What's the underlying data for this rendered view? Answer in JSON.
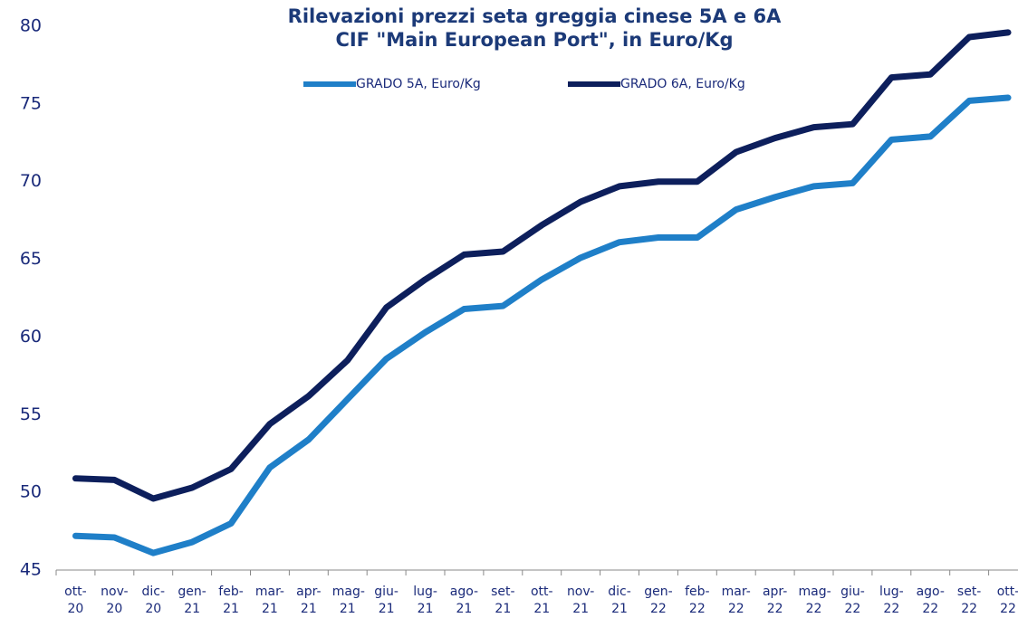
{
  "chart_data": {
    "type": "line",
    "title": "Rilevazioni prezzi seta greggia cinese 5A e 6A",
    "subtitle": "CIF \"Main European Port\", in Euro/Kg",
    "categories": [
      "ott-20",
      "nov-20",
      "dic-20",
      "gen-21",
      "feb-21",
      "mar-21",
      "apr-21",
      "mag-21",
      "giu-21",
      "lug-21",
      "ago-21",
      "set-21",
      "ott-21",
      "nov-21",
      "dic-21",
      "gen-22",
      "feb-22",
      "mar-22",
      "apr-22",
      "mag-22",
      "giu-22",
      "lug-22",
      "ago-22",
      "set-22",
      "ott-22"
    ],
    "series": [
      {
        "name": "GRADO 5A, Euro/Kg",
        "color": "#1f7fc8",
        "values": [
          47.2,
          47.1,
          46.1,
          46.8,
          48.0,
          51.6,
          53.4,
          56.0,
          58.6,
          60.3,
          61.8,
          62.0,
          63.7,
          65.1,
          66.1,
          66.4,
          66.4,
          68.2,
          69.0,
          69.7,
          69.9,
          72.7,
          72.9,
          75.2,
          75.4
        ]
      },
      {
        "name": "GRADO 6A, Euro/Kg",
        "color": "#0d1f5c",
        "values": [
          50.9,
          50.8,
          49.6,
          50.3,
          51.5,
          54.4,
          56.2,
          58.5,
          61.9,
          63.7,
          65.3,
          65.5,
          67.2,
          68.7,
          69.7,
          70.0,
          70.0,
          71.9,
          72.8,
          73.5,
          73.7,
          76.7,
          76.9,
          79.3,
          79.6
        ]
      }
    ],
    "ylim": [
      45,
      80
    ],
    "yticks": [
      45,
      50,
      55,
      60,
      65,
      70,
      75,
      80
    ],
    "grid": false,
    "legend": "top"
  }
}
